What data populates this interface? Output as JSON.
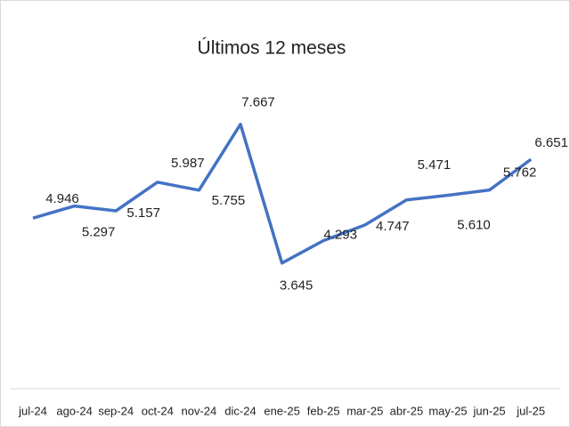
{
  "chart_data": {
    "type": "line",
    "title": "Últimos 12 meses",
    "categories": [
      "jul-24",
      "ago-24",
      "sep-24",
      "oct-24",
      "nov-24",
      "dic-24",
      "ene-25",
      "feb-25",
      "mar-25",
      "abr-25",
      "may-25",
      "jun-25",
      "jul-25"
    ],
    "values": [
      4.946,
      5.297,
      5.157,
      5.987,
      5.755,
      7.667,
      3.645,
      4.293,
      4.747,
      5.471,
      5.61,
      5.762,
      6.651
    ],
    "value_labels": [
      "4.946",
      "5.297",
      "5.157",
      "5.987",
      "5.755",
      "7.667",
      "3.645",
      "4.293",
      "4.747",
      "5.471",
      "5.610",
      "5.762",
      "6.651"
    ],
    "color": "#4472c4",
    "ylim": [
      0,
      9
    ]
  }
}
